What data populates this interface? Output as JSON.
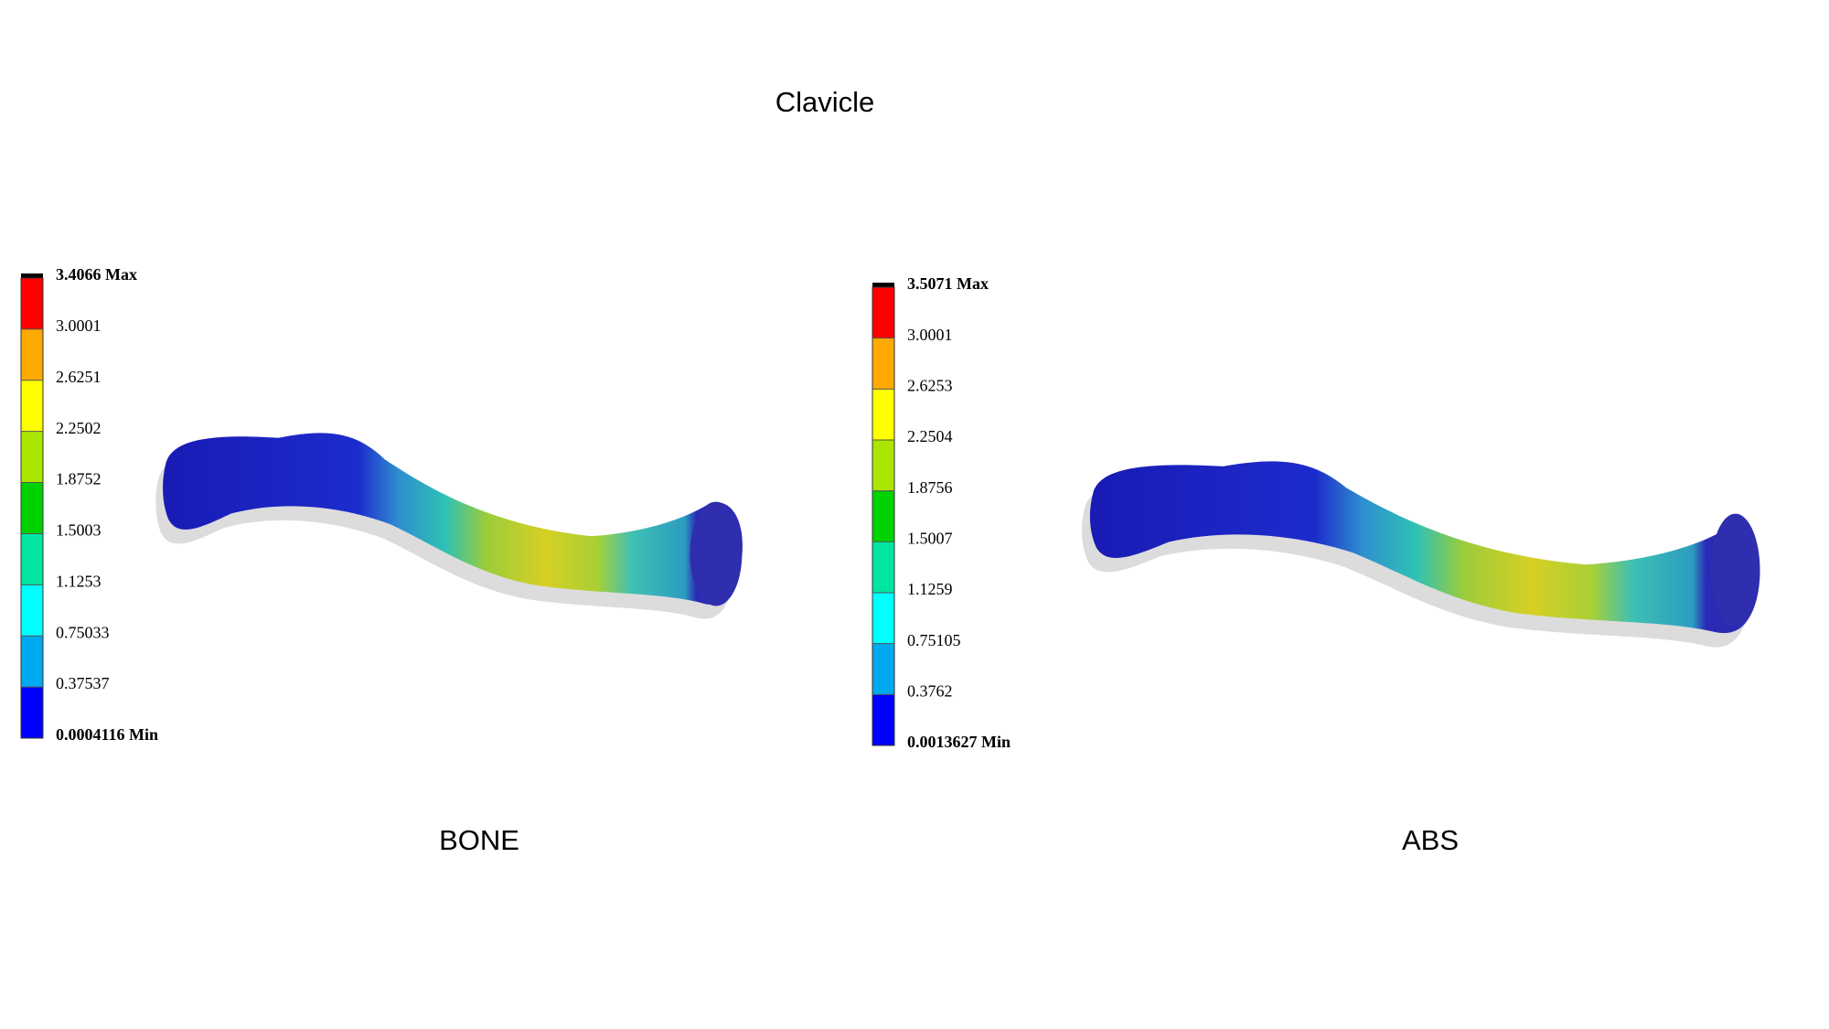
{
  "title": "Clavicle",
  "panels": [
    {
      "caption": "BONE",
      "legend": {
        "max": "3.4066 Max",
        "levels": [
          "3.0001",
          "2.6251",
          "2.2502",
          "1.8752",
          "1.5003",
          "1.1253",
          "0.75033",
          "0.37537"
        ],
        "min": "0.0004116 Min"
      }
    },
    {
      "caption": "ABS",
      "legend": {
        "max": "3.5071 Max",
        "levels": [
          "3.0001",
          "2.6253",
          "2.2504",
          "1.8756",
          "1.5007",
          "1.1259",
          "0.75105",
          "0.3762"
        ],
        "min": "0.0013627 Min"
      }
    }
  ]
}
